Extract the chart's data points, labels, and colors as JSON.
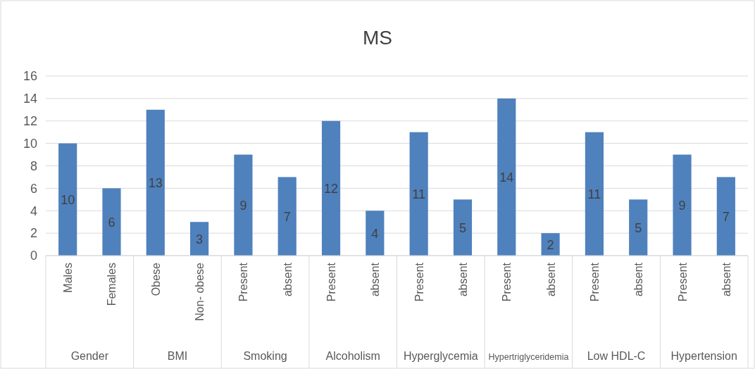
{
  "chart_data": {
    "type": "bar",
    "title": "MS",
    "categories": [
      "Males",
      "Females",
      "Obese",
      "Non- obese",
      "Present",
      "absent",
      "Present",
      "absent",
      "Present",
      "absent",
      "Present",
      "absent",
      "Present",
      "absent",
      "Present",
      "absent"
    ],
    "values": [
      10,
      6,
      13,
      3,
      9,
      7,
      12,
      4,
      11,
      5,
      14,
      2,
      11,
      5,
      9,
      7
    ],
    "color": "#4f81bd",
    "ylim": [
      0,
      16
    ],
    "yticks": [
      0,
      2,
      4,
      6,
      8,
      10,
      12,
      14,
      16
    ],
    "grid": "y",
    "data_labels": true,
    "annotations": [
      "Gender",
      "BMI",
      "Smoking",
      "Alcoholism",
      "Hyperglycemia",
      "Hypertriglyceridemia",
      "Low HDL-C",
      "Hypertension"
    ]
  }
}
